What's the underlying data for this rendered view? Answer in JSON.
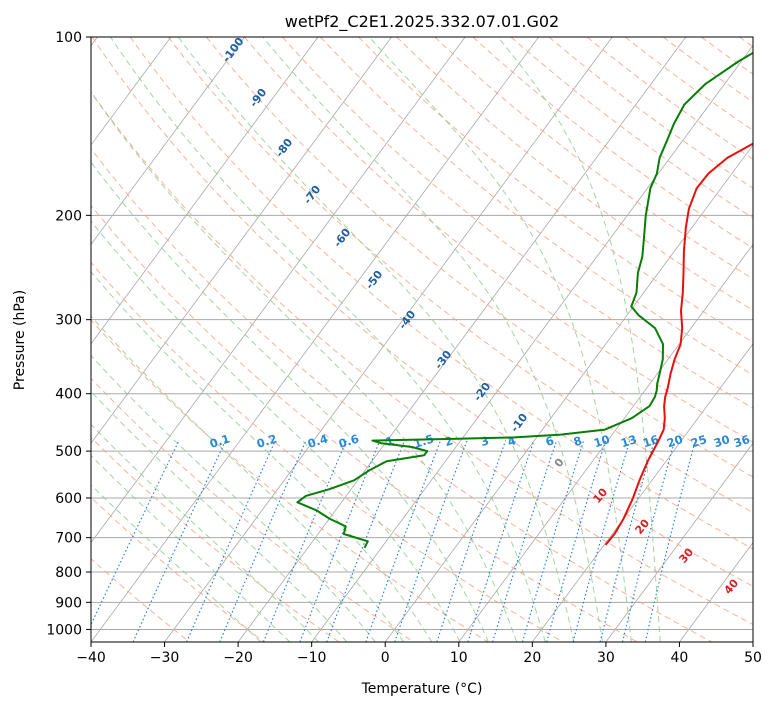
{
  "chart_data": {
    "type": "line",
    "subtype": "skew-t log-p diagram",
    "title": "wetPf2_C2E1.2025.332.07.01.G02",
    "xlabel": "Temperature (°C)",
    "ylabel": "Pressure (hPa)",
    "xlim": [
      -40,
      50
    ],
    "ylim": [
      1050,
      100
    ],
    "y_scale": "log",
    "x_ticks": [
      -40,
      -30,
      -20,
      -10,
      0,
      10,
      20,
      30,
      40,
      50
    ],
    "y_ticks": [
      100,
      200,
      300,
      400,
      500,
      600,
      700,
      800,
      900,
      1000
    ],
    "grid": true,
    "colors": {
      "temperature": "#e8100c",
      "dewpoint": "#087d08",
      "isotherm": "#a8a8a8",
      "isobar": "#a8a8a8",
      "dry_adiabat": "#f7a48a",
      "moist_adiabat": "#8cc98c",
      "mixing_ratio": "#1e78dc",
      "isotherm_label": "#1f5f9f",
      "dry_adiabat_label": "#d62222",
      "mixing_ratio_label": "#2a8ad8"
    },
    "isotherm_labels": [
      "-100",
      "-90",
      "-80",
      "-70",
      "-60",
      "-50",
      "-40",
      "-30",
      "-20",
      "-10",
      "0"
    ],
    "dry_adiabat_labels": [
      "10",
      "20",
      "30",
      "40"
    ],
    "mixing_ratio_labels": [
      "0.1",
      "0.2",
      "0.4",
      "0.6",
      "1",
      "1.5",
      "2",
      "3",
      "4",
      "6",
      "8",
      "10",
      "13",
      "16",
      "20",
      "25",
      "30",
      "36"
    ],
    "series": [
      {
        "key": "temperature",
        "points": [
          [
            720,
            20.2
          ],
          [
            690,
            20.3
          ],
          [
            650,
            20.0
          ],
          [
            600,
            19.2
          ],
          [
            560,
            18.3
          ],
          [
            520,
            17.5
          ],
          [
            500,
            17.2
          ],
          [
            480,
            16.9
          ],
          [
            460,
            16.5
          ],
          [
            440,
            15.5
          ],
          [
            420,
            14.2
          ],
          [
            405,
            13.4
          ],
          [
            390,
            12.8
          ],
          [
            370,
            11.8
          ],
          [
            350,
            10.9
          ],
          [
            330,
            10.2
          ],
          [
            310,
            8.8
          ],
          [
            290,
            6.9
          ],
          [
            270,
            5.3
          ],
          [
            250,
            3.4
          ],
          [
            230,
            1.3
          ],
          [
            210,
            -0.8
          ],
          [
            195,
            -2.3
          ],
          [
            180,
            -3.3
          ],
          [
            170,
            -3.2
          ],
          [
            160,
            -2.2
          ],
          [
            150,
            0.2
          ],
          [
            140,
            2.8
          ],
          [
            130,
            6.5
          ],
          [
            120,
            10.2
          ],
          [
            110,
            14.4
          ],
          [
            100,
            18.0
          ]
        ]
      },
      {
        "key": "dewpoint",
        "points": [
          [
            728,
            -12.3
          ],
          [
            710,
            -12.5
          ],
          [
            690,
            -16.5
          ],
          [
            670,
            -17.0
          ],
          [
            650,
            -20.0
          ],
          [
            630,
            -22.5
          ],
          [
            610,
            -26.0
          ],
          [
            595,
            -25.5
          ],
          [
            580,
            -23.0
          ],
          [
            560,
            -20.5
          ],
          [
            540,
            -19.5
          ],
          [
            520,
            -18.0
          ],
          [
            508,
            -13.5
          ],
          [
            500,
            -13.5
          ],
          [
            492,
            -16.0
          ],
          [
            485,
            -20.5
          ],
          [
            480,
            -22.0
          ],
          [
            477,
            -12.0
          ],
          [
            474,
            -3.0
          ],
          [
            469,
            3.0
          ],
          [
            460,
            8.5
          ],
          [
            440,
            11.0
          ],
          [
            420,
            12.2
          ],
          [
            405,
            12.0
          ],
          [
            395,
            11.6
          ],
          [
            385,
            11.0
          ],
          [
            370,
            10.3
          ],
          [
            350,
            9.3
          ],
          [
            330,
            7.8
          ],
          [
            310,
            5.1
          ],
          [
            295,
            1.6
          ],
          [
            285,
            -0.3
          ],
          [
            270,
            -1.0
          ],
          [
            250,
            -2.8
          ],
          [
            235,
            -3.8
          ],
          [
            220,
            -5.3
          ],
          [
            200,
            -7.5
          ],
          [
            180,
            -9.6
          ],
          [
            170,
            -10.2
          ],
          [
            160,
            -11.4
          ],
          [
            150,
            -12.1
          ],
          [
            140,
            -12.9
          ],
          [
            130,
            -13.4
          ],
          [
            120,
            -12.6
          ],
          [
            110,
            -10.4
          ],
          [
            100,
            -7.2
          ]
        ]
      }
    ]
  }
}
